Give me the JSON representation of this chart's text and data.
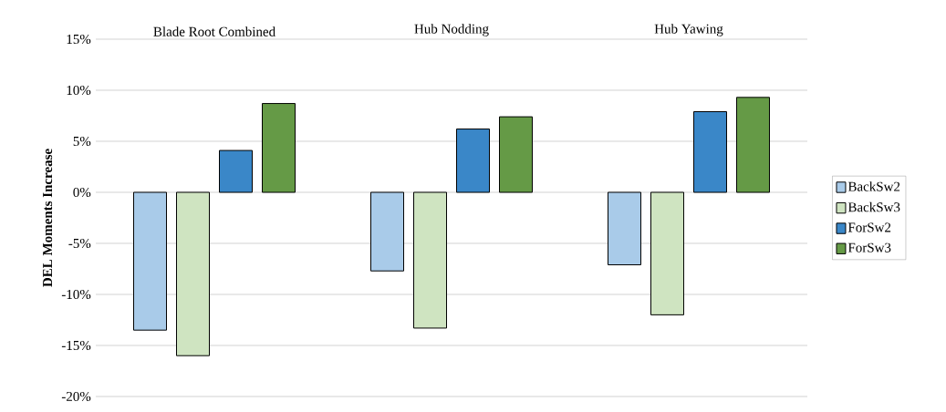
{
  "chart_data": {
    "type": "bar",
    "ylabel": "DEL Moments Increase",
    "categories": [
      "Blade Root Combined",
      "Hub Nodding",
      "Hub Yawing"
    ],
    "series": [
      {
        "name": "BackSw2",
        "color": "#a9cbe9",
        "values": [
          -13.5,
          -7.7,
          -7.1
        ]
      },
      {
        "name": "BackSw3",
        "color": "#cfe4c1",
        "values": [
          -16.0,
          -13.3,
          -12.0
        ]
      },
      {
        "name": "ForSw2",
        "color": "#3a87c8",
        "values": [
          4.1,
          6.2,
          7.9
        ]
      },
      {
        "name": "ForSw3",
        "color": "#659a46",
        "values": [
          8.7,
          7.4,
          9.3
        ]
      }
    ],
    "ylim": [
      -20,
      15
    ],
    "yticks": [
      {
        "value": -20,
        "label": "-20%"
      },
      {
        "value": -15,
        "label": "-15%"
      },
      {
        "value": -10,
        "label": "-10%"
      },
      {
        "value": -5,
        "label": "-5%"
      },
      {
        "value": 0,
        "label": "0%"
      },
      {
        "value": 5,
        "label": "5%"
      },
      {
        "value": 10,
        "label": "10%"
      },
      {
        "value": 15,
        "label": "15%"
      }
    ],
    "grid": "y",
    "legend": "right"
  }
}
